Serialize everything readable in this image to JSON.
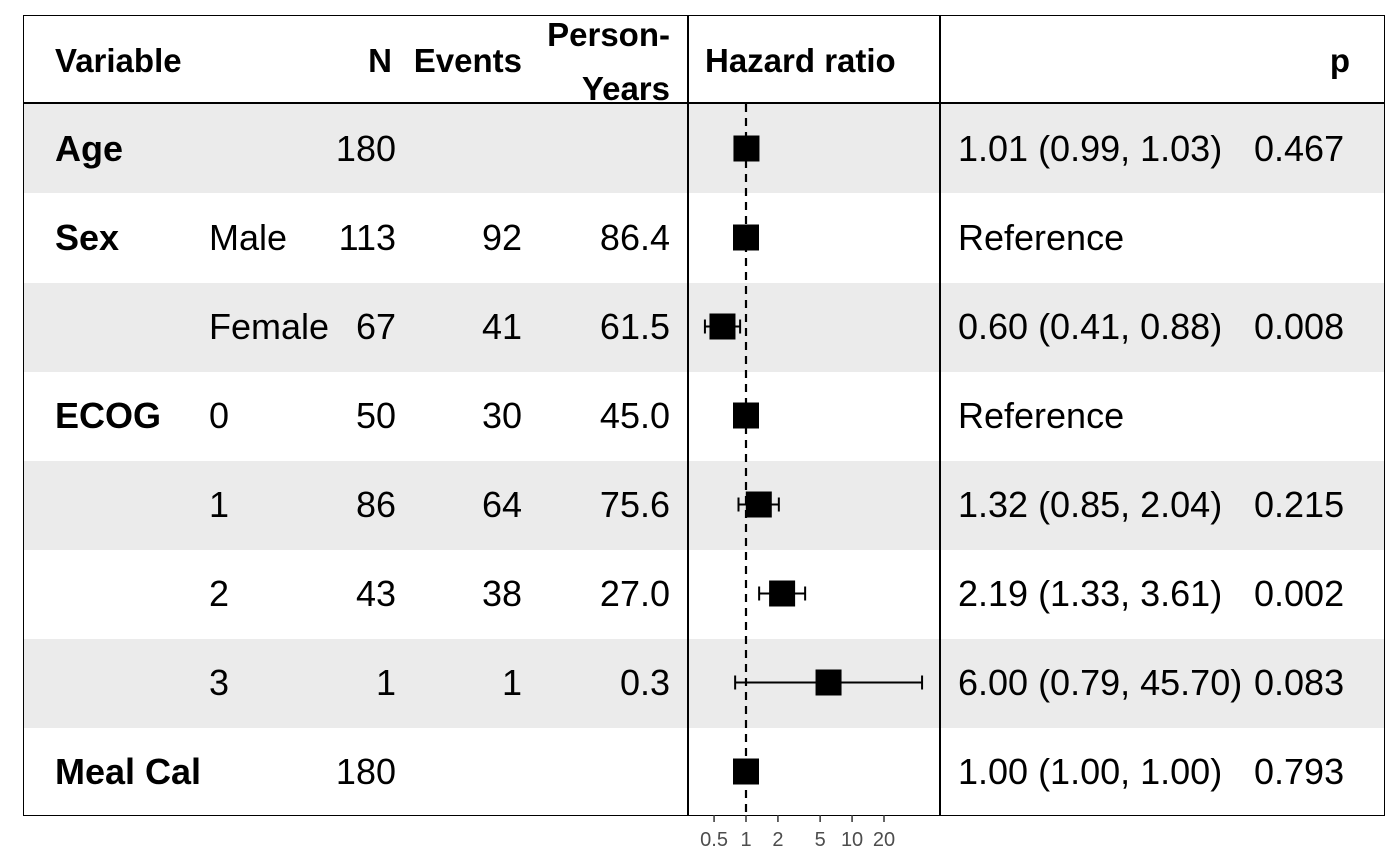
{
  "headers": {
    "variable": "Variable",
    "n": "N",
    "events": "Events",
    "person_years_1": "Person-",
    "person_years_2": "Years",
    "hazard_ratio": "Hazard ratio",
    "p": "p"
  },
  "rows": [
    {
      "variable": "Age",
      "level": "",
      "n": "180",
      "events": "",
      "person_years": "",
      "estimate": "1.01 (0.99, 1.03)",
      "p": "0.467"
    },
    {
      "variable": "Sex",
      "level": "Male",
      "n": "113",
      "events": "92",
      "person_years": "86.4",
      "estimate": "Reference",
      "p": ""
    },
    {
      "variable": "",
      "level": "Female",
      "n": "67",
      "events": "41",
      "person_years": "61.5",
      "estimate": "0.60 (0.41, 0.88)",
      "p": "0.008"
    },
    {
      "variable": "ECOG",
      "level": "0",
      "n": "50",
      "events": "30",
      "person_years": "45.0",
      "estimate": "Reference",
      "p": ""
    },
    {
      "variable": "",
      "level": "1",
      "n": "86",
      "events": "64",
      "person_years": "75.6",
      "estimate": "1.32 (0.85, 2.04)",
      "p": "0.215"
    },
    {
      "variable": "",
      "level": "2",
      "n": "43",
      "events": "38",
      "person_years": "27.0",
      "estimate": "2.19 (1.33, 3.61)",
      "p": "0.002"
    },
    {
      "variable": "",
      "level": "3",
      "n": "1",
      "events": "1",
      "person_years": "0.3",
      "estimate": "6.00 (0.79, 45.70)",
      "p": "0.083"
    },
    {
      "variable": "Meal Cal",
      "level": "",
      "n": "180",
      "events": "",
      "person_years": "",
      "estimate": "1.00 (1.00, 1.00)",
      "p": "0.793"
    }
  ],
  "chart_data": {
    "type": "forest",
    "scale": "log",
    "reference_line": 1,
    "xticks": [
      0.5,
      1,
      2,
      5,
      10,
      20
    ],
    "xtick_labels": [
      "0.5",
      "1",
      "2",
      "5",
      "10",
      "20"
    ],
    "xlim": [
      0.45,
      52
    ],
    "points": [
      {
        "hr": 1.01,
        "lo": 0.99,
        "hi": 1.03
      },
      {
        "hr": 1.0,
        "lo": 1.0,
        "hi": 1.0
      },
      {
        "hr": 0.6,
        "lo": 0.41,
        "hi": 0.88
      },
      {
        "hr": 1.0,
        "lo": 1.0,
        "hi": 1.0
      },
      {
        "hr": 1.32,
        "lo": 0.85,
        "hi": 2.04
      },
      {
        "hr": 2.19,
        "lo": 1.33,
        "hi": 3.61
      },
      {
        "hr": 6.0,
        "lo": 0.79,
        "hi": 45.7
      },
      {
        "hr": 1.0,
        "lo": 1.0,
        "hi": 1.0
      }
    ],
    "stripes": "alternating grey"
  }
}
